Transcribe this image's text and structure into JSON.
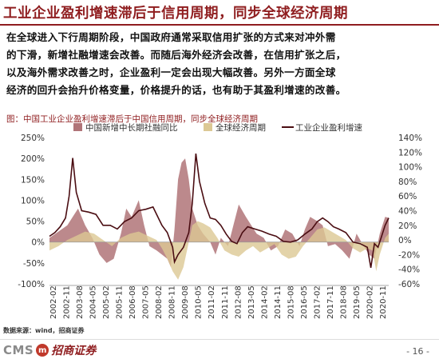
{
  "title": "工业企业盈利增速滞后于信用周期，同步全球经济周期",
  "body": [
    "在全球进入下行周期阶段，中国政府通常采取信用扩张的方式来对冲外需",
    "的下滑，新增社融增速会改善。而随后海外经济会改善，在信用扩张之后，",
    "以及海外需求改善之时，企业盈利一定会出现大幅改善。另外一方面全球",
    "经济的回升会抬升价格变量，价格提升的话，也有助于其盈利增速的改善。"
  ],
  "figure_caption": "图：中国工业企业盈利增速滞后于中国信用周期，同步全球经济周期",
  "source": "数据来源：wind，招商证券",
  "logo": {
    "cms": "CMS",
    "mark": "m",
    "cn": "招商证券"
  },
  "page": "- 16 -",
  "colors": {
    "title": "#8f1d1f",
    "social_financing": "#b07478",
    "global_cycle": "#dcc894",
    "profit": "#4a0d12"
  },
  "chart_data": {
    "type": "area",
    "title": "",
    "legend": [
      "中国新增中长期社融同比",
      "全球经济周期",
      "工业企业盈利增速"
    ],
    "legend_placement": "top",
    "left_axis": {
      "ylim": [
        -100,
        250
      ],
      "ticks": [
        "250%",
        "200%",
        "150%",
        "100%",
        "50%",
        "0%",
        "-50%",
        "-100%"
      ]
    },
    "right_axis": {
      "ylim": [
        -60,
        140
      ],
      "ticks": [
        "140%",
        "120%",
        "100%",
        "80%",
        "60%",
        "40%",
        "20%",
        "0%",
        "-20%",
        "-40%",
        "-60%"
      ]
    },
    "x_ticks": [
      "2002-02",
      "2002-11",
      "2003-08",
      "2004-05",
      "2005-02",
      "2005-11",
      "2006-08",
      "2007-05",
      "2008-02",
      "2008-11",
      "2009-08",
      "2010-05",
      "2011-02",
      "2011-11",
      "2012-08",
      "2013-05",
      "2014-02",
      "2014-11",
      "2015-08",
      "2016-05",
      "2017-02",
      "2017-11",
      "2018-08",
      "2019-05",
      "2020-02",
      "2020-11"
    ],
    "series": [
      {
        "name": "中国新增中长期社融同比",
        "axis": "left",
        "kind": "area",
        "x": [
          2002.0,
          2002.5,
          2003.0,
          2003.3,
          2003.6,
          2004.0,
          2004.4,
          2004.8,
          2005.2,
          2005.6,
          2006.0,
          2006.3,
          2006.6,
          2007.0,
          2007.3,
          2007.6,
          2008.0,
          2008.3,
          2008.6,
          2008.8,
          2009.0,
          2009.2,
          2009.4,
          2009.6,
          2009.8,
          2010.0,
          2010.3,
          2010.6,
          2011.0,
          2011.3,
          2011.6,
          2012.0,
          2012.3,
          2012.6,
          2013.0,
          2013.3,
          2013.6,
          2014.0,
          2014.4,
          2014.8,
          2015.2,
          2015.6,
          2016.0,
          2016.3,
          2016.6,
          2017.0,
          2017.3,
          2017.6,
          2018.0,
          2018.4,
          2018.8,
          2019.2,
          2019.6,
          2019.9,
          2020.2,
          2020.5,
          2020.8,
          2021.0
        ],
        "values": [
          10,
          25,
          40,
          60,
          80,
          40,
          10,
          -30,
          -50,
          -40,
          20,
          80,
          60,
          100,
          40,
          -10,
          -20,
          -30,
          -40,
          -60,
          30,
          150,
          190,
          200,
          150,
          80,
          40,
          20,
          0,
          -30,
          10,
          -10,
          40,
          90,
          60,
          40,
          20,
          10,
          -20,
          -10,
          30,
          20,
          -10,
          30,
          60,
          50,
          40,
          -10,
          -5,
          -20,
          -40,
          20,
          -10,
          -30,
          -40,
          20,
          60,
          58
        ]
      },
      {
        "name": "全球经济周期",
        "axis": "left",
        "kind": "area",
        "x": [
          2002.0,
          2002.5,
          2003.0,
          2003.5,
          2004.0,
          2004.5,
          2005.0,
          2005.5,
          2006.0,
          2006.5,
          2007.0,
          2007.5,
          2008.0,
          2008.3,
          2008.6,
          2008.9,
          2009.2,
          2009.5,
          2009.8,
          2010.0,
          2010.3,
          2010.6,
          2011.0,
          2011.4,
          2011.8,
          2012.2,
          2012.6,
          2013.0,
          2013.4,
          2013.8,
          2014.2,
          2014.6,
          2015.0,
          2015.4,
          2015.8,
          2016.2,
          2016.6,
          2017.0,
          2017.4,
          2017.8,
          2018.2,
          2018.6,
          2019.0,
          2019.4,
          2019.8,
          2020.1,
          2020.3,
          2020.5,
          2020.8,
          2021.0
        ],
        "values": [
          -20,
          -10,
          5,
          15,
          25,
          20,
          5,
          -10,
          10,
          20,
          25,
          15,
          5,
          -15,
          -40,
          -70,
          -90,
          -60,
          0,
          40,
          50,
          45,
          35,
          10,
          -20,
          -30,
          -35,
          -20,
          -10,
          -25,
          -15,
          -5,
          -30,
          -40,
          -35,
          -10,
          10,
          30,
          35,
          25,
          15,
          5,
          -15,
          -25,
          -15,
          -20,
          -70,
          -30,
          10,
          20
        ]
      },
      {
        "name": "工业企业盈利增速",
        "axis": "right",
        "kind": "line",
        "x": [
          2002.0,
          2002.3,
          2002.6,
          2002.9,
          2003.1,
          2003.3,
          2003.5,
          2003.8,
          2004.2,
          2004.6,
          2005.0,
          2005.4,
          2005.8,
          2006.2,
          2006.6,
          2007.0,
          2007.4,
          2007.8,
          2008.0,
          2008.3,
          2008.6,
          2008.9,
          2009.0,
          2009.2,
          2009.5,
          2009.8,
          2010.0,
          2010.2,
          2010.4,
          2010.7,
          2011.0,
          2011.3,
          2011.6,
          2011.9,
          2012.2,
          2012.5,
          2012.8,
          2013.1,
          2013.5,
          2013.9,
          2014.3,
          2014.7,
          2015.1,
          2015.5,
          2015.9,
          2016.3,
          2016.7,
          2017.0,
          2017.3,
          2017.6,
          2017.9,
          2018.2,
          2018.6,
          2019.0,
          2019.4,
          2019.8,
          2020.0,
          2020.2,
          2020.4,
          2020.6,
          2020.8,
          2021.0
        ],
        "values": [
          5,
          10,
          18,
          30,
          60,
          112,
          65,
          40,
          38,
          35,
          20,
          20,
          15,
          25,
          30,
          40,
          42,
          45,
          35,
          20,
          10,
          -10,
          -30,
          -20,
          -10,
          10,
          50,
          118,
          80,
          50,
          30,
          28,
          20,
          8,
          -2,
          -5,
          10,
          18,
          15,
          12,
          8,
          5,
          -2,
          -3,
          0,
          8,
          15,
          25,
          30,
          25,
          18,
          15,
          10,
          -3,
          -5,
          -10,
          -38,
          -5,
          -10,
          5,
          20,
          30
        ]
      }
    ]
  }
}
